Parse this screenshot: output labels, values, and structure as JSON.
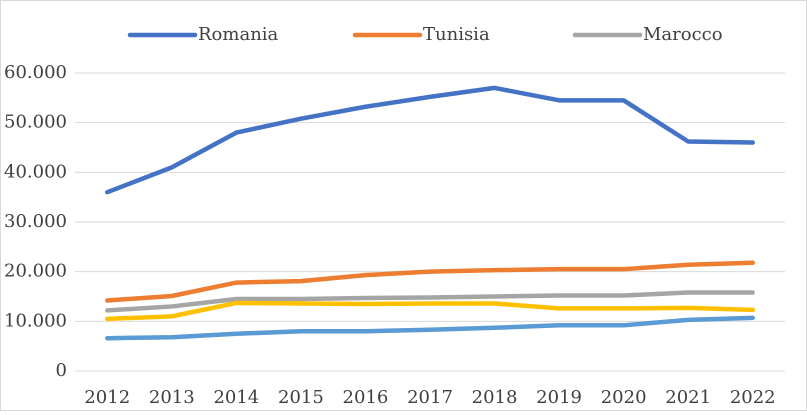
{
  "chart_data": {
    "type": "line",
    "categories": [
      "2012",
      "2013",
      "2014",
      "2015",
      "2016",
      "2017",
      "2018",
      "2019",
      "2020",
      "2021",
      "2022"
    ],
    "series": [
      {
        "name": "Romania",
        "color": "#4472c4",
        "values": [
          36000,
          41000,
          48000,
          50800,
          53200,
          55200,
          57000,
          54500,
          54500,
          46200,
          46000
        ]
      },
      {
        "name": "Tunisia",
        "color": "#ed7d31",
        "values": [
          14200,
          15100,
          17800,
          18100,
          19300,
          20000,
          20300,
          20500,
          20500,
          21400,
          21800
        ]
      },
      {
        "name": "Marocco",
        "color": "#a5a5a5",
        "values": [
          12200,
          13000,
          14500,
          14500,
          14700,
          14800,
          15000,
          15200,
          15200,
          15800,
          15800
        ]
      },
      {
        "color": "#ffc000",
        "values": [
          10500,
          11000,
          13700,
          13600,
          13500,
          13600,
          13600,
          12600,
          12600,
          12700,
          12300
        ]
      },
      {
        "color": "#5b9bd5",
        "values": [
          6600,
          6800,
          7500,
          8000,
          8000,
          8300,
          8700,
          9200,
          9200,
          10300,
          10700
        ]
      }
    ],
    "ylim": [
      0,
      60000
    ],
    "yticks": [
      0,
      {
        "value": 10000,
        "label": "10.000"
      },
      {
        "value": 20000,
        "label": "20.000"
      },
      {
        "value": 30000,
        "label": "30.000"
      },
      {
        "value": 40000,
        "label": "40.000"
      },
      {
        "value": 50000,
        "label": "50.000"
      },
      {
        "value": 60000,
        "label": "60.000"
      }
    ],
    "grid": true,
    "legend": "top"
  }
}
